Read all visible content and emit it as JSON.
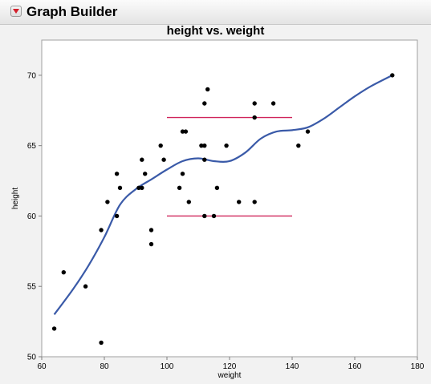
{
  "window": {
    "panel_title": "Graph Builder"
  },
  "chart_data": {
    "type": "scatter",
    "title": "height vs. weight",
    "xlabel": "weight",
    "ylabel": "height",
    "xlim": [
      60,
      180
    ],
    "ylim": [
      50,
      72.5
    ],
    "xticks": [
      60,
      80,
      100,
      120,
      140,
      160,
      180
    ],
    "yticks": [
      50,
      55,
      60,
      65,
      70
    ],
    "grid": false,
    "points": [
      {
        "x": 64,
        "y": 52
      },
      {
        "x": 67,
        "y": 56
      },
      {
        "x": 74,
        "y": 55
      },
      {
        "x": 79,
        "y": 59
      },
      {
        "x": 79,
        "y": 51
      },
      {
        "x": 81,
        "y": 61
      },
      {
        "x": 84,
        "y": 63
      },
      {
        "x": 84,
        "y": 60
      },
      {
        "x": 85,
        "y": 62
      },
      {
        "x": 91,
        "y": 62
      },
      {
        "x": 92,
        "y": 64
      },
      {
        "x": 92,
        "y": 62
      },
      {
        "x": 93,
        "y": 63
      },
      {
        "x": 95,
        "y": 59
      },
      {
        "x": 95,
        "y": 58
      },
      {
        "x": 98,
        "y": 65
      },
      {
        "x": 99,
        "y": 64
      },
      {
        "x": 104,
        "y": 62
      },
      {
        "x": 105,
        "y": 63
      },
      {
        "x": 105,
        "y": 66
      },
      {
        "x": 106,
        "y": 66
      },
      {
        "x": 107,
        "y": 61
      },
      {
        "x": 111,
        "y": 65
      },
      {
        "x": 112,
        "y": 68
      },
      {
        "x": 112,
        "y": 65
      },
      {
        "x": 112,
        "y": 64
      },
      {
        "x": 112,
        "y": 60
      },
      {
        "x": 113,
        "y": 69
      },
      {
        "x": 115,
        "y": 60
      },
      {
        "x": 116,
        "y": 62
      },
      {
        "x": 119,
        "y": 65
      },
      {
        "x": 123,
        "y": 61
      },
      {
        "x": 128,
        "y": 68
      },
      {
        "x": 128,
        "y": 67
      },
      {
        "x": 128,
        "y": 61
      },
      {
        "x": 134,
        "y": 68
      },
      {
        "x": 142,
        "y": 65
      },
      {
        "x": 145,
        "y": 66
      },
      {
        "x": 172,
        "y": 70
      }
    ],
    "smoother": [
      {
        "x": 64,
        "y": 53
      },
      {
        "x": 70,
        "y": 54.8
      },
      {
        "x": 75,
        "y": 56.5
      },
      {
        "x": 80,
        "y": 58.5
      },
      {
        "x": 85,
        "y": 60.8
      },
      {
        "x": 90,
        "y": 61.9
      },
      {
        "x": 95,
        "y": 62.6
      },
      {
        "x": 100,
        "y": 63.3
      },
      {
        "x": 105,
        "y": 63.9
      },
      {
        "x": 110,
        "y": 64.1
      },
      {
        "x": 115,
        "y": 63.9
      },
      {
        "x": 120,
        "y": 63.9
      },
      {
        "x": 125,
        "y": 64.5
      },
      {
        "x": 130,
        "y": 65.5
      },
      {
        "x": 135,
        "y": 66.0
      },
      {
        "x": 140,
        "y": 66.1
      },
      {
        "x": 145,
        "y": 66.3
      },
      {
        "x": 150,
        "y": 66.9
      },
      {
        "x": 155,
        "y": 67.7
      },
      {
        "x": 160,
        "y": 68.5
      },
      {
        "x": 165,
        "y": 69.2
      },
      {
        "x": 172,
        "y": 70
      }
    ],
    "reference_lines": [
      {
        "x1": 100,
        "x2": 140,
        "y": 67
      },
      {
        "x1": 100,
        "x2": 140,
        "y": 60
      }
    ],
    "colors": {
      "points": "#000000",
      "smoother": "#3a5aa8",
      "reference_lines": "#d0245a",
      "plot_background": "#ffffff",
      "frame": "#a0a0a0"
    }
  }
}
